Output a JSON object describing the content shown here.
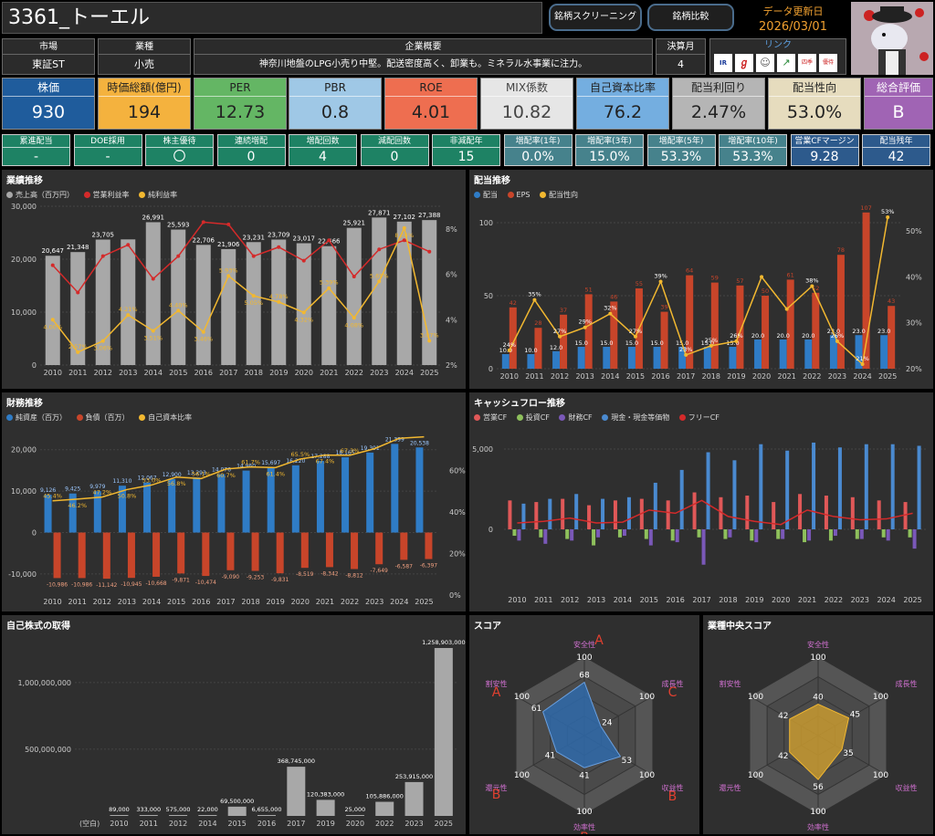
{
  "header": {
    "title": "3361_トーエル",
    "btn_screening": "銘柄スクリーニング",
    "btn_compare": "銘柄比較",
    "update_label": "データ更新日",
    "update_date": "2026/03/01"
  },
  "info": {
    "market_h": "市場",
    "market_v": "東証ST",
    "industry_h": "業種",
    "industry_v": "小売",
    "summary_h": "企業概要",
    "summary_v": "神奈川地盤のLPG小売り中堅。配送密度高く、卸業も。ミネラル水事業に注力。",
    "fiscal_h": "決算月",
    "fiscal_v": "4",
    "links_h": "リンク",
    "links": [
      "IR BANK",
      "kabutan",
      "minkabu",
      "chart",
      "四季報",
      "株主優待"
    ]
  },
  "kpis": [
    {
      "label": "株価",
      "value": "930",
      "bg": "#1f5c9c",
      "hc": "#fff",
      "vc": "#fff"
    },
    {
      "label": "時価総額(億円)",
      "value": "194",
      "bg": "#f4b23e",
      "hc": "#222",
      "vc": "#222"
    },
    {
      "label": "PER",
      "value": "12.73",
      "bg": "#64b664",
      "hc": "#222",
      "vc": "#222"
    },
    {
      "label": "PBR",
      "value": "0.8",
      "bg": "#9fc8e6",
      "hc": "#222",
      "vc": "#222"
    },
    {
      "label": "ROE",
      "value": "4.01",
      "bg": "#ee6e50",
      "hc": "#222",
      "vc": "#222"
    },
    {
      "label": "MIX係数",
      "value": "10.82",
      "bg": "#e6e6e6",
      "hc": "#444",
      "vc": "#444"
    },
    {
      "label": "自己資本比率",
      "value": "76.2",
      "bg": "#74aee0",
      "hc": "#222",
      "vc": "#222"
    },
    {
      "label": "配当利回り",
      "value": "2.47%",
      "bg": "#b5b5b5",
      "hc": "#222",
      "vc": "#222"
    },
    {
      "label": "配当性向",
      "value": "53.0%",
      "bg": "#e6dcbe",
      "hc": "#222",
      "vc": "#222"
    },
    {
      "label": "総合評価",
      "value": "B",
      "bg": "#a064b4",
      "hc": "#fff",
      "vc": "#fff"
    }
  ],
  "stats": [
    {
      "label": "累進配当",
      "value": "-",
      "bg": "#1e8264"
    },
    {
      "label": "DOE採用",
      "value": "-",
      "bg": "#1e8264"
    },
    {
      "label": "株主優待",
      "value": "〇",
      "bg": "#1e8264"
    },
    {
      "label": "連続増配",
      "value": "0",
      "bg": "#1e8264"
    },
    {
      "label": "増配回数",
      "value": "4",
      "bg": "#1e8264"
    },
    {
      "label": "減配回数",
      "value": "0",
      "bg": "#1e8264"
    },
    {
      "label": "非減配年",
      "value": "15",
      "bg": "#1e8264"
    },
    {
      "label": "増配率(1年)",
      "value": "0.0%",
      "bg": "#46828c"
    },
    {
      "label": "増配率(3年)",
      "value": "15.0%",
      "bg": "#46828c"
    },
    {
      "label": "増配率(5年)",
      "value": "53.3%",
      "bg": "#46828c"
    },
    {
      "label": "増配率(10年)",
      "value": "53.3%",
      "bg": "#46828c"
    },
    {
      "label": "営業CFマージン",
      "value": "9.28",
      "bg": "#2d5a8c"
    },
    {
      "label": "配当残年",
      "value": "42",
      "bg": "#2d5a8c"
    }
  ],
  "panels": {
    "perf": {
      "title": "業績推移",
      "legend": [
        "売上高（百万円）",
        "営業利益率",
        "純利益率"
      ]
    },
    "div": {
      "title": "配当推移",
      "legend": [
        "配当",
        "EPS",
        "配当性向"
      ]
    },
    "fin": {
      "title": "財務推移",
      "legend": [
        "純資産（百万）",
        "負債（百万）",
        "自己資本比率"
      ]
    },
    "cf": {
      "title": "キャッシュフロー推移",
      "legend": [
        "営業CF",
        "投資CF",
        "財務CF",
        "現金・現金等価物",
        "フリーCF"
      ]
    },
    "buyback": {
      "title": "自己株式の取得"
    },
    "score": {
      "title": "スコア"
    },
    "median": {
      "title": "業種中央スコア"
    }
  },
  "chart_data": [
    {
      "type": "bar",
      "title": "業績推移",
      "x": [
        "2010",
        "2011",
        "2012",
        "2013",
        "2014",
        "2015",
        "2016",
        "2017",
        "2018",
        "2019",
        "2020",
        "2021",
        "2022",
        "2023",
        "2024",
        "2025"
      ],
      "series": [
        {
          "name": "売上高（百万円）",
          "values": [
            20647,
            21348,
            23705,
            23744,
            26991,
            25593,
            22706,
            21906,
            23231,
            23709,
            23017,
            22466,
            25921,
            27871,
            27102,
            27388
          ],
          "labels": [
            "20,647",
            "21,348",
            "23,705",
            "",
            "26,991",
            "25,593",
            "22,706",
            "21,906",
            "23,231",
            "23,709",
            "23,017",
            "22,466",
            "25,921",
            "27,871",
            "27,102",
            "27,388"
          ]
        },
        {
          "name": "営業利益率",
          "values": [
            6.4,
            5.2,
            6.8,
            7.3,
            5.8,
            6.8,
            8.3,
            8.2,
            6.8,
            7.2,
            6.6,
            7.5,
            5.9,
            7.1,
            7.5,
            7.0
          ]
        },
        {
          "name": "純利益率",
          "values": [
            4.0,
            2.57,
            3.06,
            4.21,
            3.51,
            4.4,
            3.46,
            5.93,
            5.05,
            4.78,
            4.32,
            5.39,
            4.08,
            5.69,
            8.04,
            3.07
          ],
          "labels": [
            "4.00%",
            "2.57%",
            "3.06%",
            "4.21%",
            "3.51%",
            "4.40%",
            "3.46%",
            "5.93%",
            "5.05%",
            "4.78%",
            "4.32%",
            "5.39%",
            "4.08%",
            "5.69%",
            "8.04%",
            "3.07%"
          ]
        }
      ],
      "ylim": [
        0,
        30000
      ],
      "y2lim": [
        2,
        9
      ],
      "yticks": [
        "0",
        "10,000",
        "20,000",
        "30,000"
      ],
      "y2ticks": [
        "2%",
        "4%",
        "6%",
        "8%"
      ]
    },
    {
      "type": "bar",
      "title": "配当推移",
      "x": [
        "2010",
        "2011",
        "2012",
        "2013",
        "2014",
        "2015",
        "2016",
        "2017",
        "2018",
        "2019",
        "2020",
        "2021",
        "2022",
        "2023",
        "2024",
        "2025"
      ],
      "series": [
        {
          "name": "配当",
          "values": [
            10,
            10,
            12,
            15,
            15,
            15,
            15,
            15,
            15,
            15,
            20,
            20,
            20,
            23,
            23,
            23
          ],
          "labels": [
            "10.0",
            "10.0",
            "12.0",
            "15.0",
            "15.0",
            "15.0",
            "15.0",
            "15.0",
            "15.0",
            "15.0",
            "20.0",
            "20.0",
            "20.0",
            "23.0",
            "23.0",
            "23.0"
          ]
        },
        {
          "name": "EPS",
          "values": [
            42,
            28,
            37,
            51,
            46,
            55,
            39,
            64,
            59,
            57,
            50,
            61,
            52,
            78,
            107,
            43
          ]
        },
        {
          "name": "配当性向",
          "values": [
            24,
            35,
            27,
            29,
            32,
            27,
            39,
            23,
            25,
            26,
            40,
            33,
            38,
            26,
            21,
            53
          ],
          "labels": [
            "24%",
            "35%",
            "27%",
            "29%",
            "32%",
            "27%",
            "39%",
            "23%",
            "25%",
            "26%",
            "",
            "",
            "38%",
            "26%",
            "21%",
            "53%"
          ]
        }
      ],
      "ylim": [
        0,
        110
      ],
      "y2lim": [
        20,
        55
      ],
      "yticks": [
        "0",
        "50",
        "100"
      ],
      "y2ticks": [
        "20%",
        "30%",
        "40%",
        "50%"
      ]
    },
    {
      "type": "bar",
      "title": "財務推移",
      "x": [
        "2010",
        "2011",
        "2012",
        "2013",
        "2014",
        "2015",
        "2016",
        "2017",
        "2018",
        "2019",
        "2020",
        "2021",
        "2022",
        "2023",
        "2024",
        "2025"
      ],
      "series": [
        {
          "name": "純資産（百万）",
          "values": [
            9126,
            9425,
            9979,
            11310,
            12067,
            12900,
            13293,
            14076,
            14960,
            15697,
            16220,
            17288,
            18165,
            19301,
            21399,
            20538
          ],
          "labels": [
            "9,126",
            "9,425",
            "9,979",
            "11,310",
            "12,067",
            "12,900",
            "13,293",
            "14,076",
            "14,960",
            "15,697",
            "16,220",
            "17,288",
            "18,165",
            "19,301",
            "21,399",
            "20,538"
          ]
        },
        {
          "name": "負債（百万）",
          "values": [
            -10986,
            -10986,
            -11142,
            -10945,
            -10668,
            -9871,
            -10474,
            -9090,
            -9253,
            -9831,
            -8519,
            -8342,
            -8812,
            -7649,
            -6587,
            -6397
          ],
          "labels": [
            "-10,986",
            "-10,986",
            "-11,142",
            "-10,945",
            "-10,668",
            "-9,871",
            "-10,474",
            "-9,090",
            "-9,253",
            "-9,831",
            "-8,519",
            "-8,342",
            "-8,812",
            "-7,649",
            "-6,587",
            "-6,397"
          ]
        },
        {
          "name": "自己資本比率",
          "values": [
            45.4,
            46.2,
            47.2,
            50.8,
            53.0,
            56.8,
            56.1,
            60.7,
            61.7,
            61.4,
            65.5,
            67.4,
            67.3,
            70.5,
            75.5,
            76.2
          ],
          "labels": [
            "45.4%",
            "46.2%",
            "47.2%",
            "50.8%",
            "53.0%",
            "56.8%",
            "56.1%",
            "60.7%",
            "61.7%",
            "61.4%",
            "65.5%",
            "67.4%",
            "67.3%",
            "",
            "",
            ""
          ]
        }
      ],
      "ylim": [
        -12000,
        25000
      ],
      "y2lim": [
        0,
        80
      ],
      "yticks": [
        "-10,000",
        "0",
        "10,000",
        "20,000"
      ],
      "y2ticks": [
        "0%",
        "20%",
        "40%",
        "60%"
      ]
    },
    {
      "type": "bar",
      "title": "キャッシュフロー推移",
      "x": [
        "2010",
        "2011",
        "2012",
        "2013",
        "2014",
        "2015",
        "2016",
        "2017",
        "2018",
        "2019",
        "2020",
        "2021",
        "2022",
        "2023",
        "2024",
        "2025"
      ],
      "series": [
        {
          "name": "営業CF",
          "values": [
            1800,
            1700,
            1900,
            1500,
            1800,
            1900,
            1800,
            2300,
            2000,
            2100,
            1700,
            2200,
            2100,
            2000,
            1800,
            1700
          ]
        },
        {
          "name": "投資CF",
          "values": [
            -400,
            -500,
            -600,
            -1000,
            -500,
            -600,
            -700,
            -500,
            -600,
            -700,
            -600,
            -800,
            -700,
            -600,
            -500,
            -500
          ]
        },
        {
          "name": "財務CF",
          "values": [
            -700,
            -900,
            -700,
            -500,
            -400,
            -1000,
            -800,
            -2200,
            -500,
            -800,
            -600,
            -700,
            -400,
            -600,
            -700,
            -1200
          ]
        },
        {
          "name": "現金・現金等価物",
          "values": [
            1600,
            1900,
            2200,
            1900,
            2000,
            2900,
            3700,
            4800,
            4300,
            5300,
            4900,
            5400,
            5100,
            5300,
            5300,
            5200
          ]
        },
        {
          "name": "フリーCF",
          "values": [
            400,
            500,
            700,
            400,
            450,
            1200,
            1000,
            1800,
            800,
            500,
            300,
            1200,
            800,
            600,
            650,
            1000
          ]
        }
      ],
      "yticks": [
        "0",
        "5,000"
      ]
    },
    {
      "type": "bar",
      "title": "自己株式の取得",
      "categories": [
        "(空白)",
        "2010",
        "2011",
        "2012",
        "2014",
        "2015",
        "2016",
        "2017",
        "2019",
        "2020",
        "2022",
        "2023",
        "2025"
      ],
      "values": [
        0,
        89000,
        333000,
        575000,
        22000,
        69500000,
        6655000,
        368745000,
        120383000,
        25000,
        105886000,
        253915000,
        1258903000
      ],
      "labels": [
        "",
        "89,000",
        "333,000",
        "575,000",
        "22,000",
        "69,500,000",
        "6,655,000",
        "368,745,000",
        "120,383,000",
        "25,000",
        "105,886,000",
        "253,915,000",
        "1,258,903,000"
      ],
      "ylim": [
        0,
        1300000000
      ],
      "yticks": [
        "500,000,000",
        "1,000,000,000"
      ]
    }
  ],
  "radar": {
    "axes": [
      "安全性",
      "成長性",
      "収益性",
      "効率性",
      "還元性",
      "割安性"
    ],
    "max": "100",
    "score": {
      "values": [
        68,
        24,
        53,
        41,
        41,
        61
      ],
      "grades": [
        "A",
        "C",
        "B",
        "B",
        "B",
        "A"
      ]
    },
    "median": {
      "values": [
        40,
        45,
        35,
        56,
        42,
        42
      ]
    }
  },
  "colors": {
    "sales": "#a8a8a8",
    "op": "#d42a2a",
    "net": "#f2b830",
    "div": "#2f7cc6",
    "eps": "#c8452a",
    "payout": "#f2b830",
    "equity": "#2f7cc6",
    "debt": "#c8452a",
    "ratio": "#f2b830",
    "opcf": "#e05858",
    "invcf": "#8ec05c",
    "fincf": "#7a58b8",
    "cash": "#4a8ad0",
    "fcf": "#d42a2a"
  }
}
